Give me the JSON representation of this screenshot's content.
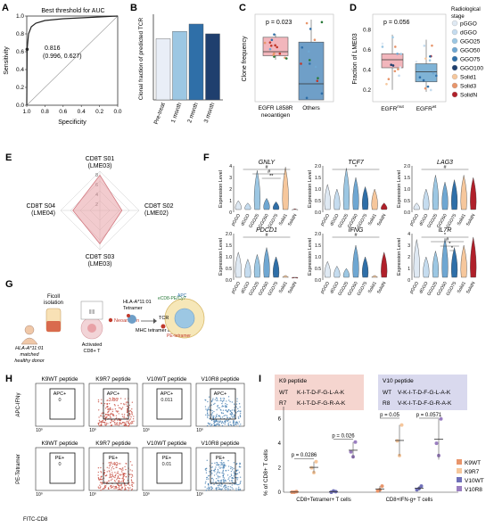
{
  "colors": {
    "navy": "#1f3f6e",
    "mid_blue": "#2f6fa8",
    "light_blue": "#7fb3d6",
    "pale_blue": "#c5dcef",
    "pink": "#e8a1a6",
    "red_dark": "#b0202a",
    "orange": "#e8956b",
    "peach": "#f6c79c",
    "tcell_pink": "#f2d4d7",
    "k9_box": "#f5d5cf",
    "v10_box": "#d9d9ee"
  },
  "panels": {
    "A": {
      "letter": "A",
      "chart_data": {
        "type": "line",
        "title": "Best threshold for AUC",
        "xlabel": "Specificity",
        "ylabel": "Sensitivity",
        "x_ticks": [
          "1.0",
          "0.8",
          "0.6",
          "0.4",
          "0.2",
          "0.0"
        ],
        "y_ticks": [
          "0.0",
          "0.2",
          "0.4",
          "0.6",
          "0.8",
          "1.0"
        ],
        "auc_label": "0.816",
        "best_point_label": "(0.996, 0.627)",
        "best_point": {
          "specificity": 0.996,
          "sensitivity": 0.627
        },
        "roc_curve": [
          [
            1.0,
            0.0
          ],
          [
            0.998,
            0.3
          ],
          [
            0.996,
            0.627
          ],
          [
            0.98,
            0.8
          ],
          [
            0.95,
            0.88
          ],
          [
            0.9,
            0.92
          ],
          [
            0.8,
            0.95
          ],
          [
            0.6,
            0.97
          ],
          [
            0.4,
            0.98
          ],
          [
            0.2,
            0.99
          ],
          [
            0.0,
            1.0
          ]
        ]
      }
    },
    "B": {
      "letter": "B",
      "chart_data": {
        "type": "bar",
        "ylabel": "Clonal fraction of predicted TCR",
        "categories": [
          "Pre-treat",
          "1 month",
          "2 month",
          "3 month"
        ],
        "values": [
          0.25,
          0.28,
          0.31,
          0.27
        ],
        "bar_colors": [
          "#e9eef7",
          "#9cc7e3",
          "#2f6fa8",
          "#1f3f6e"
        ],
        "ylim": [
          0,
          0.35
        ]
      }
    },
    "C": {
      "letter": "C",
      "chart_data": {
        "type": "box",
        "ylabel": "Clone frequency",
        "annotation": "p = 0.023",
        "categories": [
          "EGFR L858R\nneoantigen",
          "Others"
        ],
        "category_lines": [
          [
            "EGFR L858R",
            "neoantigen"
          ],
          [
            "Others"
          ]
        ],
        "boxes": [
          {
            "q1": 0.55,
            "median": 0.6,
            "q3": 0.78,
            "whisker_low": 0.5,
            "whisker_high": 0.82
          },
          {
            "q1": 0.0,
            "median": 0.2,
            "q3": 0.72,
            "whisker_low": 0.0,
            "whisker_high": 1.0
          }
        ],
        "box_colors": [
          "#f2b6bc",
          "#6f9fc8"
        ]
      }
    },
    "D": {
      "letter": "D",
      "chart_data": {
        "type": "box",
        "ylabel": "Fraction of LME03",
        "annotation": "p = 0.056",
        "categories": [
          "EGFRmut",
          "EGFRwt"
        ],
        "category_labels": [
          {
            "base": "EGFR",
            "sup": "mut"
          },
          {
            "base": "EGFR",
            "sup": "wt"
          }
        ],
        "y_ticks": [
          "0.8",
          "0.6",
          "0.4",
          "0.2"
        ],
        "ylim": [
          0.1,
          0.9
        ],
        "boxes": [
          {
            "q1": 0.42,
            "median": 0.5,
            "q3": 0.56,
            "whisker_low": 0.2,
            "whisker_high": 0.75
          },
          {
            "q1": 0.28,
            "median": 0.38,
            "q3": 0.46,
            "whisker_low": 0.18,
            "whisker_high": 0.7
          }
        ],
        "box_colors": [
          "#f2b6bc",
          "#7fb3d6"
        ],
        "legend_title": "Radiological\nstage",
        "legend_title_lines": [
          "Radiological",
          "stage"
        ],
        "legend": [
          {
            "label": "pGGO",
            "color": "#dfe9f3"
          },
          {
            "label": "dGGO",
            "color": "#c5dcef"
          },
          {
            "label": "GGO25",
            "color": "#9cc7e3"
          },
          {
            "label": "GGO50",
            "color": "#6fa7d2"
          },
          {
            "label": "GGO75",
            "color": "#2f6fa8"
          },
          {
            "label": "GGO100",
            "color": "#1f3f6e"
          },
          {
            "label": "Solid1",
            "color": "#f6c79c"
          },
          {
            "label": "Solid3",
            "color": "#e8956b"
          },
          {
            "label": "SolidN",
            "color": "#b0202a"
          }
        ]
      }
    },
    "E": {
      "letter": "E",
      "chart_data": {
        "type": "radar",
        "axes": [
          {
            "line1": "CD8T S01",
            "line2": "(LME03)"
          },
          {
            "line1": "CD8T S02",
            "line2": "(LME02)"
          },
          {
            "line1": "CD8T S03",
            "line2": "(LME03)"
          },
          {
            "line1": "CD8T S04",
            "line2": "(LME04)"
          }
        ],
        "ring_labels": [
          "2",
          "4",
          "6",
          "8"
        ],
        "rmax": 8,
        "values": [
          7.2,
          4.5,
          6.8,
          5.5
        ]
      }
    },
    "F": {
      "letter": "F",
      "ylabel": "Expression Level",
      "chart_data": {
        "type": "violin",
        "categories": [
          "pGGO",
          "dGGO",
          "GGO25",
          "GGO50",
          "GGO75",
          "Solid1",
          "SolidN"
        ],
        "category_colors": [
          "#dfe9f3",
          "#c5dcef",
          "#9cc7e3",
          "#6fa7d2",
          "#2f6fa8",
          "#f6c79c",
          "#b0202a"
        ],
        "genes": [
          {
            "name": "GNLY",
            "ymax": 4,
            "yticks": [
              "0",
              "1",
              "2",
              "3",
              "4"
            ],
            "heights": [
              1.0,
              0.8,
              3.6,
              1.2,
              0.9,
              3.9,
              0.3
            ],
            "sig": [
              "#",
              "#",
              "**"
            ]
          },
          {
            "name": "TCF7",
            "ymax": 2.0,
            "yticks": [
              "0.0",
              "0.5",
              "1.0",
              "1.5",
              "2.0"
            ],
            "heights": [
              1.2,
              1.0,
              1.9,
              1.5,
              1.1,
              1.0,
              0.4
            ],
            "sig": [
              "*"
            ]
          },
          {
            "name": "LAG3",
            "ymax": 2.0,
            "yticks": [
              "0.0",
              "0.5",
              "1.0",
              "1.5",
              "2.0"
            ],
            "heights": [
              0.4,
              1.0,
              1.6,
              1.3,
              1.4,
              1.6,
              1.5
            ],
            "sig": [
              "#"
            ]
          },
          {
            "name": "PDCD1",
            "ymax": 2.0,
            "yticks": [
              "0.0",
              "0.5",
              "1.0",
              "1.5",
              "2.0"
            ],
            "heights": [
              1.2,
              0.9,
              1.1,
              1.4,
              1.0,
              0.2,
              0.1
            ],
            "sig": [
              "#"
            ]
          },
          {
            "name": "IFNG",
            "ymax": 2.0,
            "yticks": [
              "0.0",
              "0.5",
              "1.0",
              "1.5",
              "2.0"
            ],
            "heights": [
              0.8,
              0.6,
              0.5,
              1.5,
              1.0,
              0.2,
              1.2
            ],
            "sig": [
              "#"
            ]
          },
          {
            "name": "IL7R",
            "ymax": 4,
            "yticks": [
              "0",
              "1",
              "2",
              "3",
              "4"
            ],
            "heights": [
              3.5,
              2.0,
              2.5,
              3.6,
              2.8,
              3.0,
              3.7
            ],
            "sig": [
              "*",
              "#",
              "*",
              "*"
            ]
          }
        ]
      }
    },
    "G": {
      "letter": "G",
      "labels": {
        "ficoll": "Ficoll\nisolation",
        "donor": "HLA-A*11:01\nmatched\nhealthy donor",
        "activated": "Activated\nCD8+ T",
        "neoantigen": "Neoantigen",
        "tetramer": "HLA-A*11:01\nTetramer",
        "assay": "MHC tetramer assay",
        "tcr": "TCR",
        "apc": "APC",
        "ecd": "eCD8-PE/Cy7",
        "pe": "PE-tetramer"
      },
      "ficoll_lines": [
        "Ficoll",
        "isolation"
      ],
      "donor_lines": [
        "HLA-A*11:01",
        "matched",
        "healthy donor"
      ],
      "activated_lines": [
        "Activated",
        "CD8+ T"
      ],
      "tetramer_lines": [
        "HLA-A*11:01",
        "Tetramer"
      ]
    },
    "H": {
      "letter": "H",
      "row_labels": [
        "APC-IFNγ",
        "PE-Tetramer"
      ],
      "xlabel": "FITC-CD8",
      "x_tick": "10⁰",
      "row1": [
        {
          "title": "K9WT peptide",
          "gate": "APC+",
          "value": "0",
          "dots": "none",
          "color": "#222"
        },
        {
          "title": "K9R7 peptide",
          "gate": "APC+",
          "value": "3.86",
          "dots": "red",
          "color": "#c0392b"
        },
        {
          "title": "V10WT peptide",
          "gate": "APC+",
          "value": "0.011",
          "dots": "none",
          "color": "#222"
        },
        {
          "title": "V10R8 peptide",
          "gate": "APC+",
          "value": "1.12",
          "dots": "blue",
          "color": "#2f6fa8"
        }
      ],
      "row2": [
        {
          "title": "K9WT peptide",
          "gate": "PE+",
          "value": "0",
          "dots": "none",
          "color": "#222"
        },
        {
          "title": "K9R7 peptide",
          "gate": "PE+",
          "value": "1.40",
          "dots": "red",
          "color": "#c0392b"
        },
        {
          "title": "V10WT peptide",
          "gate": "PE+",
          "value": "0.01",
          "dots": "none",
          "color": "#222"
        },
        {
          "title": "V10R8 peptide",
          "gate": "PE+",
          "value": "3.36",
          "dots": "blue",
          "color": "#2f6fa8"
        }
      ]
    },
    "I": {
      "letter": "I",
      "k9": {
        "title": "K9 peptide",
        "rows": [
          {
            "label": "WT",
            "seq": "K-I-T-D-F-G-L-A-K"
          },
          {
            "label": "R7",
            "seq": "K-I-T-D-F-G-R-A-K"
          }
        ]
      },
      "v10": {
        "title": "V10 peptide",
        "rows": [
          {
            "label": "WT",
            "seq": "V-K-I-T-D-F-G-L-A-K"
          },
          {
            "label": "R8",
            "seq": "V-K-I-T-D-F-G-R-A-K"
          }
        ]
      },
      "chart_data": {
        "type": "scatter",
        "ylabel": "% of CD8+ T cells",
        "yticks": [
          "0",
          "2",
          "4",
          "6"
        ],
        "ylim": [
          0,
          7
        ],
        "groups": [
          "CD8+Tetramer+ T cells",
          "CD8+IFN-g+ T cells"
        ],
        "series": [
          {
            "name": "K9WT",
            "color": "#e8956b",
            "values": [
              [
                0,
                0,
                0.05
              ],
              [
                0.1,
                0.2,
                0.5
              ]
            ]
          },
          {
            "name": "K9R7",
            "color": "#f6c79c",
            "values": [
              [
                2.0,
                1.6,
                2.5
              ],
              [
                4.2,
                3.0,
                5.5
              ]
            ]
          },
          {
            "name": "V10WT",
            "color": "#6f6fb8",
            "values": [
              [
                0,
                0.1,
                0.05
              ],
              [
                0.2,
                0.3,
                0.5
              ]
            ]
          },
          {
            "name": "V10R8",
            "color": "#9a7ec0",
            "values": [
              [
                3.3,
                2.9,
                4.1
              ],
              [
                4.0,
                3.0,
                6.0
              ]
            ]
          }
        ],
        "annotations": [
          "p = 0.0286",
          "p = 0.026",
          "p = 0.05",
          "p = 0.0571"
        ]
      }
    }
  }
}
